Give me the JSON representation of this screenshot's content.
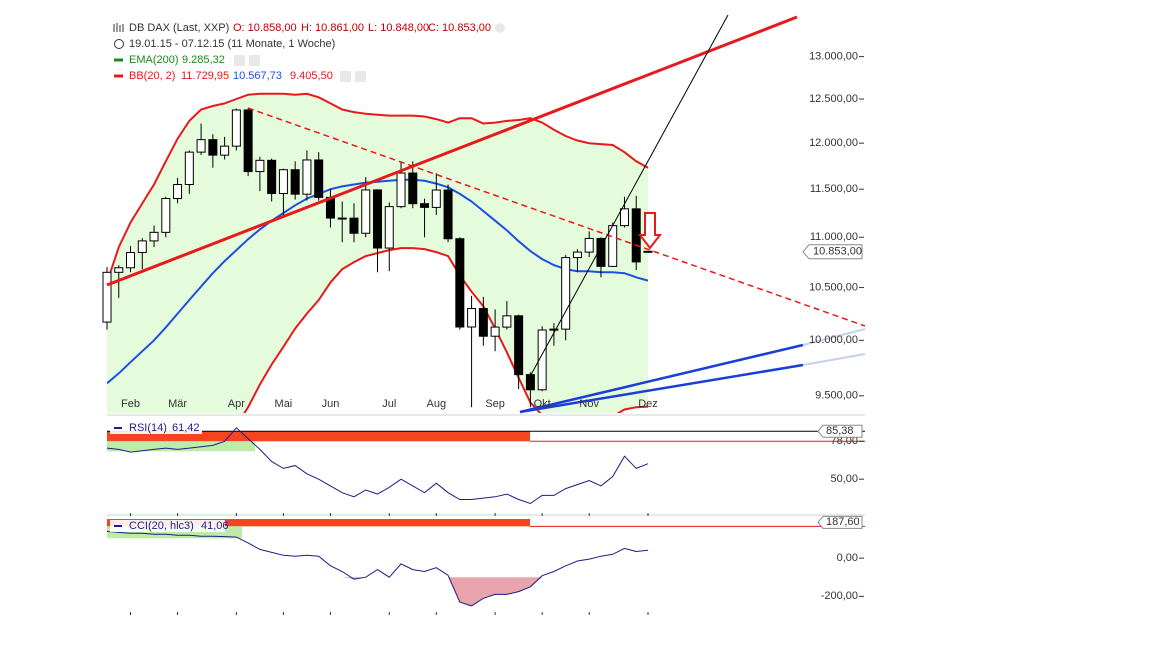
{
  "chart_data": [
    {
      "type": "candlestick",
      "title": "DB DAX (Last, XXP)",
      "ohlc_labels": [
        "O: 10.858,00",
        "H: 10.861,00",
        "L: 10.848,00",
        "C: 10.853,00"
      ],
      "subtitle": "19.01.15 - 07.12.15 (11 Monate, 1 Woche)",
      "categories": [
        null,
        null,
        "Feb",
        null,
        null,
        null,
        "Mär",
        null,
        null,
        null,
        null,
        "Apr",
        null,
        null,
        null,
        "Mai",
        null,
        null,
        null,
        "Jun",
        null,
        null,
        null,
        null,
        "Jul",
        null,
        null,
        null,
        "Aug",
        null,
        null,
        null,
        null,
        "Sep",
        null,
        null,
        null,
        "Okt",
        null,
        null,
        null,
        "Nov",
        null,
        null,
        null,
        null,
        "Dez"
      ],
      "open": [
        10170,
        10649,
        10694,
        10846,
        10963,
        11050,
        11401,
        11550,
        11901,
        12039,
        11868,
        11967,
        12374,
        11689,
        11811,
        11454,
        11709,
        11447,
        11815,
        11413,
        11197,
        11196,
        11041,
        11492,
        10891,
        11316,
        11673,
        11347,
        11308,
        11491,
        10985,
        10124,
        10298,
        10038,
        10123,
        10229,
        9688,
        9553,
        10096,
        10104,
        10795,
        10850,
        10988,
        10708,
        11119,
        11293,
        10858
      ],
      "high": [
        10700,
        10720,
        10910,
        10990,
        11120,
        11420,
        11620,
        11920,
        12220,
        12100,
        12070,
        12390,
        12390,
        11850,
        11830,
        11720,
        11800,
        11920,
        11900,
        11500,
        11370,
        11350,
        11630,
        11500,
        11360,
        11800,
        11800,
        11400,
        11670,
        11550,
        11000,
        10420,
        10410,
        10290,
        10370,
        10240,
        9710,
        10130,
        10160,
        10820,
        10880,
        11060,
        11000,
        11150,
        11420,
        11430,
        10861
      ],
      "low": [
        10100,
        10400,
        10650,
        10680,
        10900,
        11000,
        11350,
        11450,
        11870,
        11730,
        11820,
        11920,
        11640,
        11480,
        11370,
        11200,
        11390,
        11380,
        11380,
        11100,
        10950,
        10950,
        11000,
        10650,
        10660,
        11300,
        11300,
        11000,
        11230,
        10950,
        10100,
        9400,
        9950,
        9900,
        10100,
        9560,
        9400,
        9540,
        9950,
        10000,
        10650,
        10800,
        10600,
        10700,
        11100,
        10670,
        10848
      ],
      "close": [
        10649,
        10694,
        10846,
        10963,
        11050,
        11401,
        11550,
        11901,
        12039,
        11868,
        11967,
        12374,
        11689,
        11811,
        11454,
        11709,
        11447,
        11815,
        11413,
        11197,
        11196,
        11041,
        11492,
        10891,
        11316,
        11673,
        11347,
        11308,
        11491,
        10985,
        10124,
        10298,
        10038,
        10123,
        10229,
        9688,
        9553,
        10096,
        10104,
        10795,
        10850,
        10988,
        10708,
        11119,
        11293,
        10752,
        10853
      ],
      "up_color": "#ffffff",
      "down_color": "#000000",
      "log": true,
      "ylim": [
        9350,
        13510
      ],
      "yticks": [
        {
          "value": 9500,
          "label": "9.500,00"
        },
        {
          "value": 10000,
          "label": "10.000,00"
        },
        {
          "value": 10500,
          "label": "10.500,00"
        },
        {
          "value": 11000,
          "label": "11.000,00"
        },
        {
          "value": 11500,
          "label": "11.500,00"
        },
        {
          "value": 12000,
          "label": "12.000,00"
        },
        {
          "value": 12500,
          "label": "12.500,00"
        },
        {
          "value": 13000,
          "label": "13.000,00"
        }
      ],
      "last": {
        "value": 10853,
        "label": "10.853,00"
      },
      "indicators": [
        {
          "name": "EMA(200)",
          "color": "#1a8a1a",
          "value_labels": [
            "9.285,32"
          ]
        },
        {
          "name": "BB(20, 2)",
          "color": "#e8191a",
          "value_labels": [
            "11.729,95",
            "10.567,73",
            "9.405,50"
          ],
          "fill": "#e4fbdc",
          "series": [
            {
              "color": "#e8191a",
              "values": [
                10550,
                10900,
                11150,
                11350,
                11550,
                11800,
                12050,
                12250,
                12380,
                12420,
                12450,
                12500,
                12550,
                12560,
                12560,
                12560,
                12550,
                12560,
                12520,
                12450,
                12380,
                12350,
                12330,
                12320,
                12310,
                12310,
                12310,
                12300,
                12270,
                12230,
                12280,
                12280,
                12220,
                12230,
                12250,
                12260,
                12280,
                12230,
                12150,
                12080,
                12030,
                12000,
                11990,
                11980,
                11900,
                11800,
                11729.95
              ]
            },
            {
              "color": "#1f4fe0",
              "values": [
                9610,
                9700,
                9800,
                9900,
                10000,
                10120,
                10250,
                10380,
                10510,
                10640,
                10760,
                10870,
                10980,
                11080,
                11170,
                11250,
                11330,
                11400,
                11450,
                11500,
                11530,
                11550,
                11570,
                11580,
                11590,
                11600,
                11600,
                11590,
                11560,
                11520,
                11450,
                11370,
                11270,
                11170,
                11070,
                10960,
                10860,
                10780,
                10720,
                10680,
                10660,
                10660,
                10650,
                10650,
                10640,
                10600,
                10567.73
              ]
            },
            {
              "color": "#e8191a",
              "values": [
                8700,
                8500,
                8450,
                8450,
                8450,
                8440,
                8450,
                8500,
                8640,
                8850,
                9070,
                9240,
                9400,
                9600,
                9780,
                9940,
                10110,
                10250,
                10380,
                10550,
                10680,
                10750,
                10810,
                10840,
                10870,
                10890,
                10890,
                10880,
                10850,
                10810,
                10620,
                10460,
                10320,
                10110,
                9890,
                9660,
                9440,
                9330,
                9290,
                9280,
                9290,
                9320,
                9310,
                9320,
                9380,
                9400,
                9405.5
              ]
            }
          ]
        }
      ]
    },
    {
      "type": "line",
      "title": "RSI(14)",
      "value_label": "61,42",
      "color": "#1c1c8c",
      "values": [
        73,
        72,
        70,
        71,
        72,
        73,
        72,
        73,
        74,
        75,
        78,
        88,
        80,
        72,
        63,
        58,
        60,
        54,
        50,
        45,
        40,
        37,
        42,
        39,
        44,
        50,
        45,
        40,
        47,
        40,
        35,
        35,
        36,
        37,
        39,
        35,
        32,
        38,
        38,
        43,
        46,
        49,
        45,
        52,
        67,
        58,
        61.42
      ],
      "ylim": [
        25,
        93
      ],
      "yticks": [
        {
          "value": 50,
          "label": "50,00"
        },
        {
          "value": 78,
          "label": "78,00"
        }
      ],
      "marker": {
        "value": 85.38,
        "label": "85,38"
      }
    },
    {
      "type": "line",
      "title": "CCI(20, hlc3)",
      "value_label": "41,06",
      "color": "#1c1c8c",
      "values": [
        140,
        135,
        130,
        130,
        125,
        125,
        120,
        120,
        115,
        115,
        113,
        110,
        80,
        46,
        30,
        15,
        10,
        15,
        10,
        -40,
        -70,
        -110,
        -100,
        -60,
        -100,
        -30,
        -60,
        -70,
        -50,
        -90,
        -230,
        -250,
        -210,
        -190,
        -190,
        -175,
        -150,
        -92,
        -70,
        -40,
        -15,
        -5,
        10,
        20,
        51,
        35,
        41.06
      ],
      "ylim": [
        -282,
        205
      ],
      "yticks": [
        {
          "value": -200,
          "label": "-200,00"
        },
        {
          "value": 0,
          "label": "0,00"
        }
      ],
      "marker": {
        "value": 187.6,
        "label": "187,60"
      },
      "shade_below": -100,
      "shade_color": "#e8a4ac"
    }
  ]
}
